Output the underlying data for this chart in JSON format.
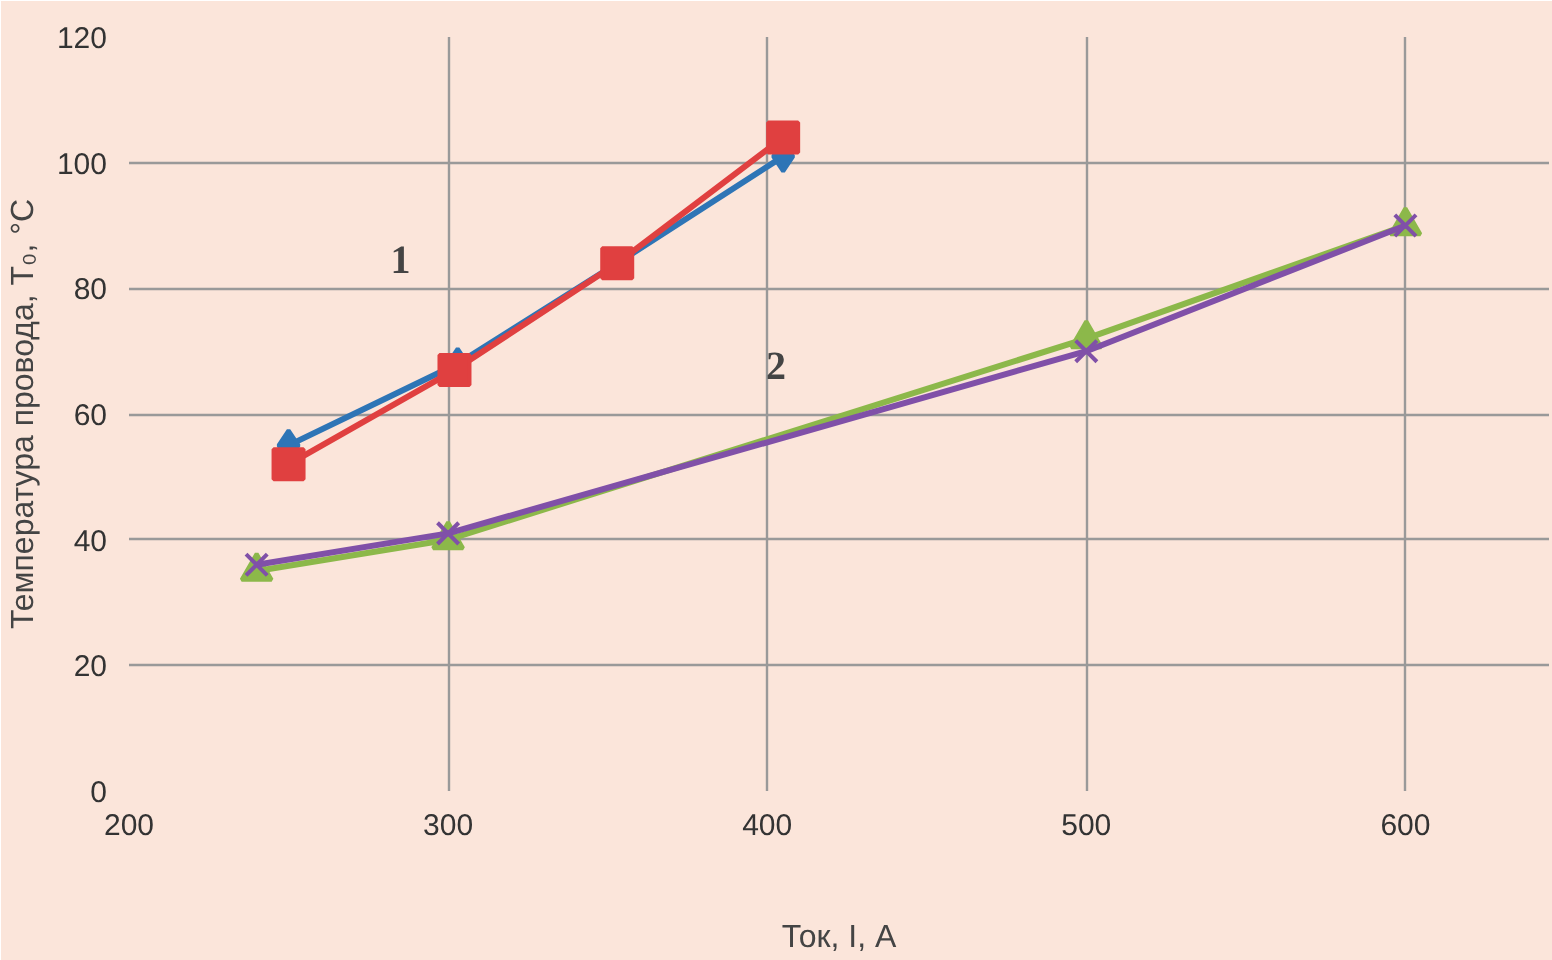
{
  "chart_data": {
    "type": "line",
    "xlabel": "Ток, I, А",
    "ylabel": "Температура провода, T₀, °C",
    "xlim": [
      200,
      645
    ],
    "ylim": [
      0,
      120
    ],
    "xticks": [
      200,
      300,
      400,
      500,
      600
    ],
    "yticks": [
      0,
      20,
      40,
      60,
      80,
      100,
      120
    ],
    "grid": true,
    "line_style": "solid",
    "series": [
      {
        "color": "#2e75b6",
        "marker": "diamond",
        "x": [
          250,
          303,
          353,
          405
        ],
        "values": [
          55,
          68,
          84,
          101
        ]
      },
      {
        "color": "#e04040",
        "marker": "square",
        "x": [
          250,
          302,
          353,
          405
        ],
        "values": [
          52,
          67,
          84,
          104
        ]
      },
      {
        "color": "#8cb84a",
        "marker": "triangle",
        "x": [
          240,
          300,
          500,
          600
        ],
        "values": [
          35,
          40,
          72,
          90
        ]
      },
      {
        "color": "#8050a8",
        "marker": "cross",
        "x": [
          240,
          300,
          500,
          600
        ],
        "values": [
          36,
          41,
          70,
          90
        ]
      }
    ],
    "annotations": [
      "1",
      "2"
    ]
  }
}
